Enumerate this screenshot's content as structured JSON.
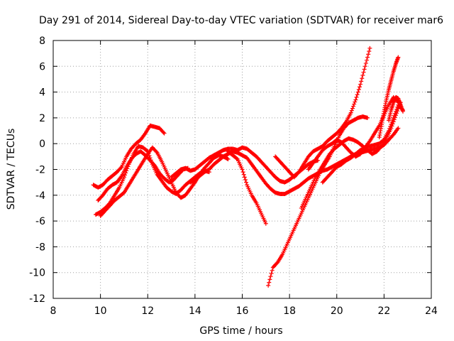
{
  "chart_data": {
    "type": "scatter",
    "title": "Day 291 of 2014, Sidereal Day-to-day VTEC variation (SDTVAR) for receiver mar6",
    "xlabel": "GPS time / hours",
    "ylabel": "SDTVAR / TECUs",
    "xlim": [
      8,
      24
    ],
    "ylim": [
      -12,
      8
    ],
    "x_ticks": [
      8,
      10,
      12,
      14,
      16,
      18,
      20,
      22,
      24
    ],
    "y_ticks": [
      -12,
      -10,
      -8,
      -6,
      -4,
      -2,
      0,
      2,
      4,
      6,
      8
    ],
    "x_tick_labels": [
      "8",
      "10",
      "12",
      "14",
      "16",
      "18",
      "20",
      "22",
      "24"
    ],
    "y_tick_labels": [
      "-12",
      "-10",
      "-8",
      "-6",
      "-4",
      "-2",
      "0",
      "2",
      "4",
      "6",
      "8"
    ],
    "grid": true,
    "legend": "none",
    "marker": "+",
    "color": "#ff0000",
    "series": [
      {
        "x": [
          9.7,
          9.9,
          10.1,
          10.3,
          10.5,
          10.7,
          10.9,
          11.1,
          11.3,
          11.5,
          11.7,
          11.9,
          12.1,
          12.3,
          12.5,
          12.7
        ],
        "y": [
          -3.2,
          -3.4,
          -3.2,
          -2.8,
          -2.5,
          -2.2,
          -1.8,
          -1.0,
          -0.4,
          0.0,
          0.3,
          0.8,
          1.4,
          1.3,
          1.2,
          0.8
        ]
      },
      {
        "x": [
          9.8,
          10.0,
          10.2,
          10.4,
          10.6,
          10.8,
          11.0,
          11.2,
          11.4,
          11.6,
          11.8,
          12.0,
          12.2,
          12.4,
          12.6,
          12.8,
          13.0,
          13.2,
          13.4,
          13.6,
          13.8,
          14.0,
          14.2,
          14.4,
          14.6
        ],
        "y": [
          -5.5,
          -5.3,
          -5.0,
          -4.6,
          -4.0,
          -3.4,
          -2.6,
          -1.6,
          -0.8,
          -0.2,
          -0.3,
          -0.6,
          -1.6,
          -2.4,
          -2.9,
          -3.4,
          -3.7,
          -3.9,
          -3.6,
          -3.2,
          -2.9,
          -2.6,
          -2.3,
          -2.1,
          -2.2
        ]
      },
      {
        "x": [
          9.9,
          10.1,
          10.3,
          10.5,
          10.7,
          10.9,
          11.1,
          11.3,
          11.5,
          11.7,
          11.9,
          12.1,
          12.3,
          12.5,
          12.7,
          12.9,
          13.1,
          13.3,
          13.5,
          13.7
        ],
        "y": [
          -4.4,
          -4.0,
          -3.5,
          -3.2,
          -3.0,
          -2.5,
          -1.8,
          -1.2,
          -0.8,
          -0.6,
          -0.9,
          -1.3,
          -1.7,
          -2.3,
          -2.7,
          -3.0,
          -2.8,
          -2.4,
          -2.0,
          -1.9
        ]
      },
      {
        "x": [
          10.0,
          10.2,
          10.4,
          10.6,
          10.8,
          11.0,
          11.2,
          11.4,
          11.6,
          11.8,
          12.0,
          12.2,
          12.4,
          12.6,
          12.8,
          13.0,
          13.2,
          13.4,
          13.6,
          13.8,
          14.0,
          14.2,
          14.4,
          14.6,
          14.8,
          15.0,
          15.2,
          15.4
        ],
        "y": [
          -5.6,
          -5.2,
          -4.8,
          -4.4,
          -4.1,
          -3.8,
          -3.2,
          -2.6,
          -2.0,
          -1.4,
          -0.8,
          -0.3,
          -0.7,
          -1.4,
          -2.2,
          -3.0,
          -3.8,
          -4.2,
          -4.0,
          -3.5,
          -3.0,
          -2.4,
          -1.9,
          -1.5,
          -1.1,
          -0.9,
          -1.0,
          -1.2
        ]
      },
      {
        "x": [
          13.0,
          13.2,
          13.4,
          13.6,
          13.8,
          14.0,
          14.2,
          14.4,
          14.6,
          14.8,
          15.0,
          15.2,
          15.4,
          15.6,
          15.8,
          16.0,
          16.2,
          16.4,
          16.6,
          16.8,
          17.0,
          17.2,
          17.4,
          17.6,
          17.8,
          18.0,
          18.2,
          18.4,
          18.6,
          18.8,
          19.0,
          19.2
        ],
        "y": [
          -2.6,
          -2.3,
          -2.0,
          -1.9,
          -2.1,
          -2.0,
          -1.7,
          -1.4,
          -1.1,
          -0.9,
          -0.7,
          -0.5,
          -0.4,
          -0.4,
          -0.5,
          -0.3,
          -0.4,
          -0.7,
          -1.0,
          -1.4,
          -1.8,
          -2.2,
          -2.6,
          -2.9,
          -3.0,
          -2.8,
          -2.5,
          -2.2,
          -1.9,
          -1.6,
          -1.4,
          -1.3
        ]
      },
      {
        "x": [
          13.8,
          14.0,
          14.2,
          14.4,
          14.6,
          14.8,
          15.0,
          15.2,
          15.4,
          15.6,
          15.8,
          16.0,
          16.2,
          16.4,
          16.6,
          16.8,
          17.0,
          17.2,
          17.4,
          17.6,
          17.8,
          18.0,
          18.2,
          18.4,
          18.6,
          18.8,
          19.0,
          19.2,
          19.4,
          19.6,
          19.8,
          20.0,
          20.2,
          20.4,
          20.6,
          20.8,
          21.0,
          21.2,
          21.4,
          21.6,
          21.8,
          22.0,
          22.2,
          22.4,
          22.6
        ],
        "y": [
          -3.0,
          -2.8,
          -2.5,
          -2.2,
          -2.0,
          -1.6,
          -1.3,
          -1.0,
          -0.8,
          -0.6,
          -0.7,
          -0.9,
          -1.1,
          -1.6,
          -2.1,
          -2.6,
          -3.1,
          -3.5,
          -3.8,
          -3.9,
          -3.9,
          -3.7,
          -3.5,
          -3.3,
          -3.0,
          -2.7,
          -2.5,
          -2.3,
          -2.1,
          -2.0,
          -1.8,
          -1.6,
          -1.4,
          -1.2,
          -1.0,
          -0.8,
          -0.7,
          -0.6,
          -0.5,
          -0.4,
          -0.3,
          -0.1,
          0.3,
          0.7,
          1.2
        ]
      },
      {
        "x": [
          15.4,
          15.6,
          15.8,
          16.0,
          16.2,
          16.4,
          16.6,
          16.8,
          17.0
        ],
        "y": [
          -0.6,
          -0.9,
          -1.2,
          -2.0,
          -3.2,
          -4.0,
          -4.6,
          -5.4,
          -6.2
        ]
      },
      {
        "x": [
          17.1,
          17.3,
          17.5,
          17.7,
          17.9,
          18.1,
          18.3,
          18.5,
          18.7,
          18.9,
          19.1,
          19.3,
          19.5,
          19.7,
          19.9,
          20.1,
          20.3,
          20.5,
          20.7,
          20.9,
          21.1,
          21.3
        ],
        "y": [
          -11.0,
          -9.6,
          -9.2,
          -8.6,
          -7.8,
          -7.0,
          -6.2,
          -5.4,
          -4.6,
          -3.8,
          -3.0,
          -2.2,
          -1.6,
          -1.0,
          -0.2,
          0.6,
          1.2,
          1.6,
          1.8,
          2.0,
          2.1,
          2.0
        ]
      },
      {
        "x": [
          17.4,
          17.6,
          17.8,
          18.0,
          18.2,
          18.4,
          18.6,
          18.8,
          19.0,
          19.2,
          19.4,
          19.6,
          19.8,
          20.0,
          20.2,
          20.4,
          20.6,
          20.8,
          21.0,
          21.2,
          21.4
        ],
        "y": [
          -1.0,
          -1.4,
          -1.8,
          -2.2,
          -2.6,
          -2.2,
          -1.6,
          -1.0,
          -0.6,
          -0.4,
          -0.2,
          0.2,
          0.5,
          0.8,
          1.2,
          1.7,
          2.4,
          3.4,
          4.6,
          6.0,
          7.4
        ]
      },
      {
        "x": [
          18.5,
          18.7,
          18.9,
          19.1,
          19.3,
          19.5,
          19.7,
          19.9,
          20.1,
          20.3,
          20.5,
          20.7,
          20.9,
          21.1,
          21.3,
          21.5,
          21.7,
          21.9,
          22.1,
          22.3,
          22.5,
          22.7
        ],
        "y": [
          -5.0,
          -4.2,
          -3.4,
          -2.6,
          -2.0,
          -1.4,
          -0.8,
          -0.4,
          -0.1,
          0.2,
          0.4,
          0.3,
          0.1,
          -0.2,
          -0.5,
          -0.8,
          -0.6,
          -0.2,
          0.4,
          1.2,
          2.2,
          3.2
        ]
      },
      {
        "x": [
          18.8,
          19.0,
          19.2,
          19.4,
          19.6,
          19.8,
          20.0,
          20.2,
          20.4,
          20.6,
          20.8,
          21.0,
          21.2,
          21.4,
          21.6,
          21.8,
          22.0,
          22.2,
          22.4,
          22.6
        ],
        "y": [
          -2.0,
          -1.5,
          -1.0,
          -0.5,
          -0.2,
          0.0,
          0.3,
          0.1,
          -0.3,
          -0.7,
          -1.0,
          -0.8,
          -0.3,
          0.2,
          0.8,
          1.4,
          2.2,
          3.0,
          3.6,
          3.2
        ]
      },
      {
        "x": [
          19.4,
          19.6,
          19.8,
          20.0,
          20.2,
          20.4,
          20.6,
          20.8,
          21.0,
          21.2,
          21.4,
          21.6,
          21.8,
          22.0,
          22.2,
          22.4,
          22.6,
          22.8
        ],
        "y": [
          -3.0,
          -2.6,
          -2.2,
          -1.8,
          -1.6,
          -1.3,
          -1.1,
          -0.8,
          -0.5,
          -0.3,
          -0.2,
          -0.1,
          0.0,
          0.3,
          1.0,
          2.0,
          3.0,
          2.6
        ]
      },
      {
        "x": [
          21.8,
          21.9,
          22.0,
          22.1,
          22.2,
          22.3,
          22.4,
          22.5,
          22.6
        ],
        "y": [
          0.5,
          1.5,
          2.5,
          3.4,
          4.2,
          4.9,
          5.6,
          6.2,
          6.7
        ]
      },
      {
        "x": [
          22.2,
          22.3,
          22.4,
          22.5,
          22.6,
          22.7,
          22.8
        ],
        "y": [
          1.8,
          2.6,
          3.2,
          3.6,
          3.5,
          3.0,
          2.5
        ]
      }
    ]
  }
}
